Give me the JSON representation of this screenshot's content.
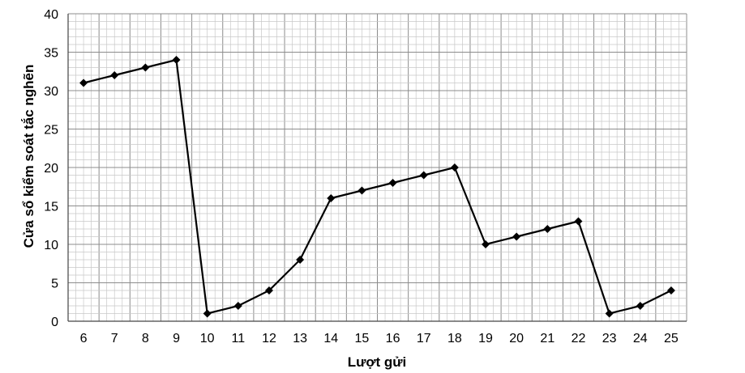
{
  "chart_data": {
    "type": "line",
    "xlabel": "Lượt gửi",
    "ylabel": "Cửa sổ kiểm soát tắc nghẽn",
    "ylim": [
      0,
      40
    ],
    "yticks": [
      0,
      5,
      10,
      15,
      20,
      25,
      30,
      35,
      40
    ],
    "x": [
      6,
      7,
      8,
      9,
      10,
      11,
      12,
      13,
      14,
      15,
      16,
      17,
      18,
      19,
      20,
      21,
      22,
      23,
      24,
      25
    ],
    "series": [
      {
        "values": [
          31,
          32,
          33,
          34,
          1,
          2,
          4,
          8,
          16,
          17,
          18,
          19,
          20,
          10,
          11,
          12,
          13,
          1,
          2,
          4
        ]
      }
    ],
    "grid": true,
    "colors": {
      "line": "#000000",
      "grid_major": "#8c8c8c",
      "grid_minor": "#c8c8c8"
    }
  }
}
